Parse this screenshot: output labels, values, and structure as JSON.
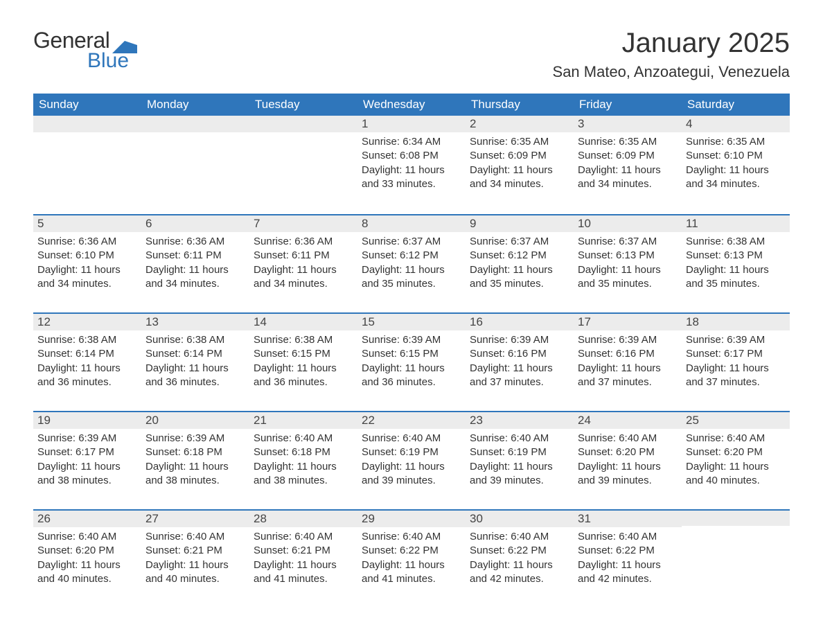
{
  "logo": {
    "text1": "General",
    "text2": "Blue",
    "accent_color": "#2f76bb"
  },
  "title": "January 2025",
  "location": "San Mateo, Anzoategui, Venezuela",
  "colors": {
    "header_bg": "#2f76bb",
    "header_text": "#ffffff",
    "daynum_bg": "#ececec",
    "border_top": "#2f76bb",
    "body_text": "#333333",
    "page_bg": "#ffffff"
  },
  "fonts": {
    "title_size_pt": 30,
    "location_size_pt": 16,
    "header_size_pt": 13,
    "body_size_pt": 11
  },
  "weekdays": [
    "Sunday",
    "Monday",
    "Tuesday",
    "Wednesday",
    "Thursday",
    "Friday",
    "Saturday"
  ],
  "weeks": [
    [
      null,
      null,
      null,
      {
        "n": "1",
        "sunrise": "6:34 AM",
        "sunset": "6:08 PM",
        "daylight": "11 hours and 33 minutes."
      },
      {
        "n": "2",
        "sunrise": "6:35 AM",
        "sunset": "6:09 PM",
        "daylight": "11 hours and 34 minutes."
      },
      {
        "n": "3",
        "sunrise": "6:35 AM",
        "sunset": "6:09 PM",
        "daylight": "11 hours and 34 minutes."
      },
      {
        "n": "4",
        "sunrise": "6:35 AM",
        "sunset": "6:10 PM",
        "daylight": "11 hours and 34 minutes."
      }
    ],
    [
      {
        "n": "5",
        "sunrise": "6:36 AM",
        "sunset": "6:10 PM",
        "daylight": "11 hours and 34 minutes."
      },
      {
        "n": "6",
        "sunrise": "6:36 AM",
        "sunset": "6:11 PM",
        "daylight": "11 hours and 34 minutes."
      },
      {
        "n": "7",
        "sunrise": "6:36 AM",
        "sunset": "6:11 PM",
        "daylight": "11 hours and 34 minutes."
      },
      {
        "n": "8",
        "sunrise": "6:37 AM",
        "sunset": "6:12 PM",
        "daylight": "11 hours and 35 minutes."
      },
      {
        "n": "9",
        "sunrise": "6:37 AM",
        "sunset": "6:12 PM",
        "daylight": "11 hours and 35 minutes."
      },
      {
        "n": "10",
        "sunrise": "6:37 AM",
        "sunset": "6:13 PM",
        "daylight": "11 hours and 35 minutes."
      },
      {
        "n": "11",
        "sunrise": "6:38 AM",
        "sunset": "6:13 PM",
        "daylight": "11 hours and 35 minutes."
      }
    ],
    [
      {
        "n": "12",
        "sunrise": "6:38 AM",
        "sunset": "6:14 PM",
        "daylight": "11 hours and 36 minutes."
      },
      {
        "n": "13",
        "sunrise": "6:38 AM",
        "sunset": "6:14 PM",
        "daylight": "11 hours and 36 minutes."
      },
      {
        "n": "14",
        "sunrise": "6:38 AM",
        "sunset": "6:15 PM",
        "daylight": "11 hours and 36 minutes."
      },
      {
        "n": "15",
        "sunrise": "6:39 AM",
        "sunset": "6:15 PM",
        "daylight": "11 hours and 36 minutes."
      },
      {
        "n": "16",
        "sunrise": "6:39 AM",
        "sunset": "6:16 PM",
        "daylight": "11 hours and 37 minutes."
      },
      {
        "n": "17",
        "sunrise": "6:39 AM",
        "sunset": "6:16 PM",
        "daylight": "11 hours and 37 minutes."
      },
      {
        "n": "18",
        "sunrise": "6:39 AM",
        "sunset": "6:17 PM",
        "daylight": "11 hours and 37 minutes."
      }
    ],
    [
      {
        "n": "19",
        "sunrise": "6:39 AM",
        "sunset": "6:17 PM",
        "daylight": "11 hours and 38 minutes."
      },
      {
        "n": "20",
        "sunrise": "6:39 AM",
        "sunset": "6:18 PM",
        "daylight": "11 hours and 38 minutes."
      },
      {
        "n": "21",
        "sunrise": "6:40 AM",
        "sunset": "6:18 PM",
        "daylight": "11 hours and 38 minutes."
      },
      {
        "n": "22",
        "sunrise": "6:40 AM",
        "sunset": "6:19 PM",
        "daylight": "11 hours and 39 minutes."
      },
      {
        "n": "23",
        "sunrise": "6:40 AM",
        "sunset": "6:19 PM",
        "daylight": "11 hours and 39 minutes."
      },
      {
        "n": "24",
        "sunrise": "6:40 AM",
        "sunset": "6:20 PM",
        "daylight": "11 hours and 39 minutes."
      },
      {
        "n": "25",
        "sunrise": "6:40 AM",
        "sunset": "6:20 PM",
        "daylight": "11 hours and 40 minutes."
      }
    ],
    [
      {
        "n": "26",
        "sunrise": "6:40 AM",
        "sunset": "6:20 PM",
        "daylight": "11 hours and 40 minutes."
      },
      {
        "n": "27",
        "sunrise": "6:40 AM",
        "sunset": "6:21 PM",
        "daylight": "11 hours and 40 minutes."
      },
      {
        "n": "28",
        "sunrise": "6:40 AM",
        "sunset": "6:21 PM",
        "daylight": "11 hours and 41 minutes."
      },
      {
        "n": "29",
        "sunrise": "6:40 AM",
        "sunset": "6:22 PM",
        "daylight": "11 hours and 41 minutes."
      },
      {
        "n": "30",
        "sunrise": "6:40 AM",
        "sunset": "6:22 PM",
        "daylight": "11 hours and 42 minutes."
      },
      {
        "n": "31",
        "sunrise": "6:40 AM",
        "sunset": "6:22 PM",
        "daylight": "11 hours and 42 minutes."
      },
      null
    ]
  ],
  "labels": {
    "sunrise": "Sunrise:",
    "sunset": "Sunset:",
    "daylight": "Daylight:"
  }
}
